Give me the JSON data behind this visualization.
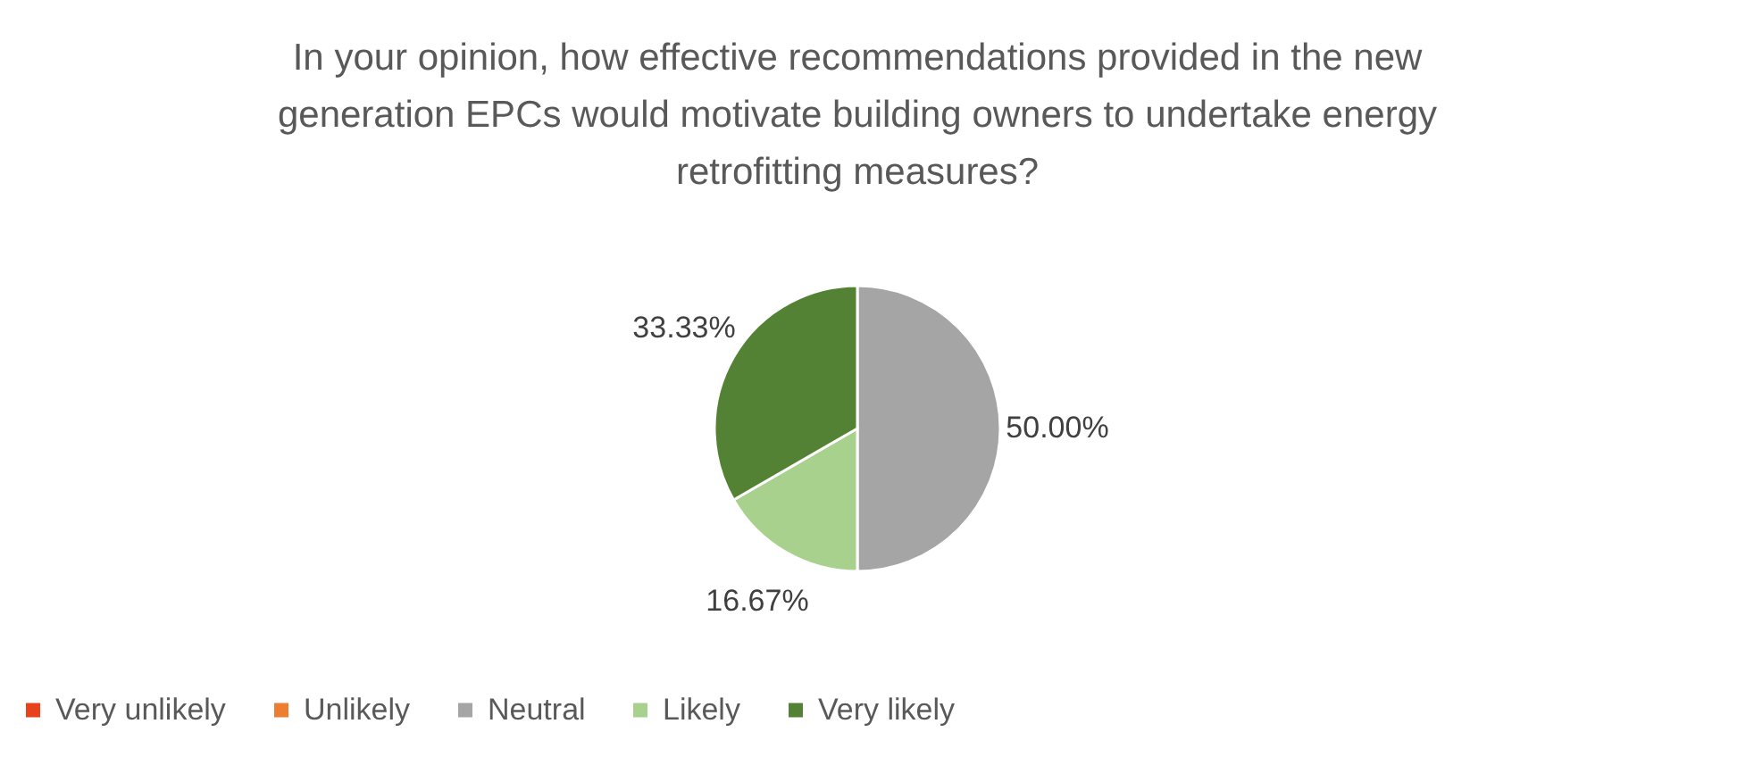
{
  "chart_data": {
    "type": "pie",
    "title": "In your opinion, how effective recommendations provided in the new generation EPCs would motivate building owners to undertake energy retrofitting measures?",
    "categories": [
      "Very unlikely",
      "Unlikely",
      "Neutral",
      "Likely",
      "Very likely"
    ],
    "values": [
      0,
      0,
      50,
      16.67,
      33.33
    ],
    "colors": [
      "#e8421c",
      "#ed7d31",
      "#a5a5a5",
      "#a9d18e",
      "#548235"
    ],
    "value_labels": [
      null,
      null,
      "50.00%",
      "16.67%",
      "33.33%"
    ],
    "legend": "bottom"
  }
}
